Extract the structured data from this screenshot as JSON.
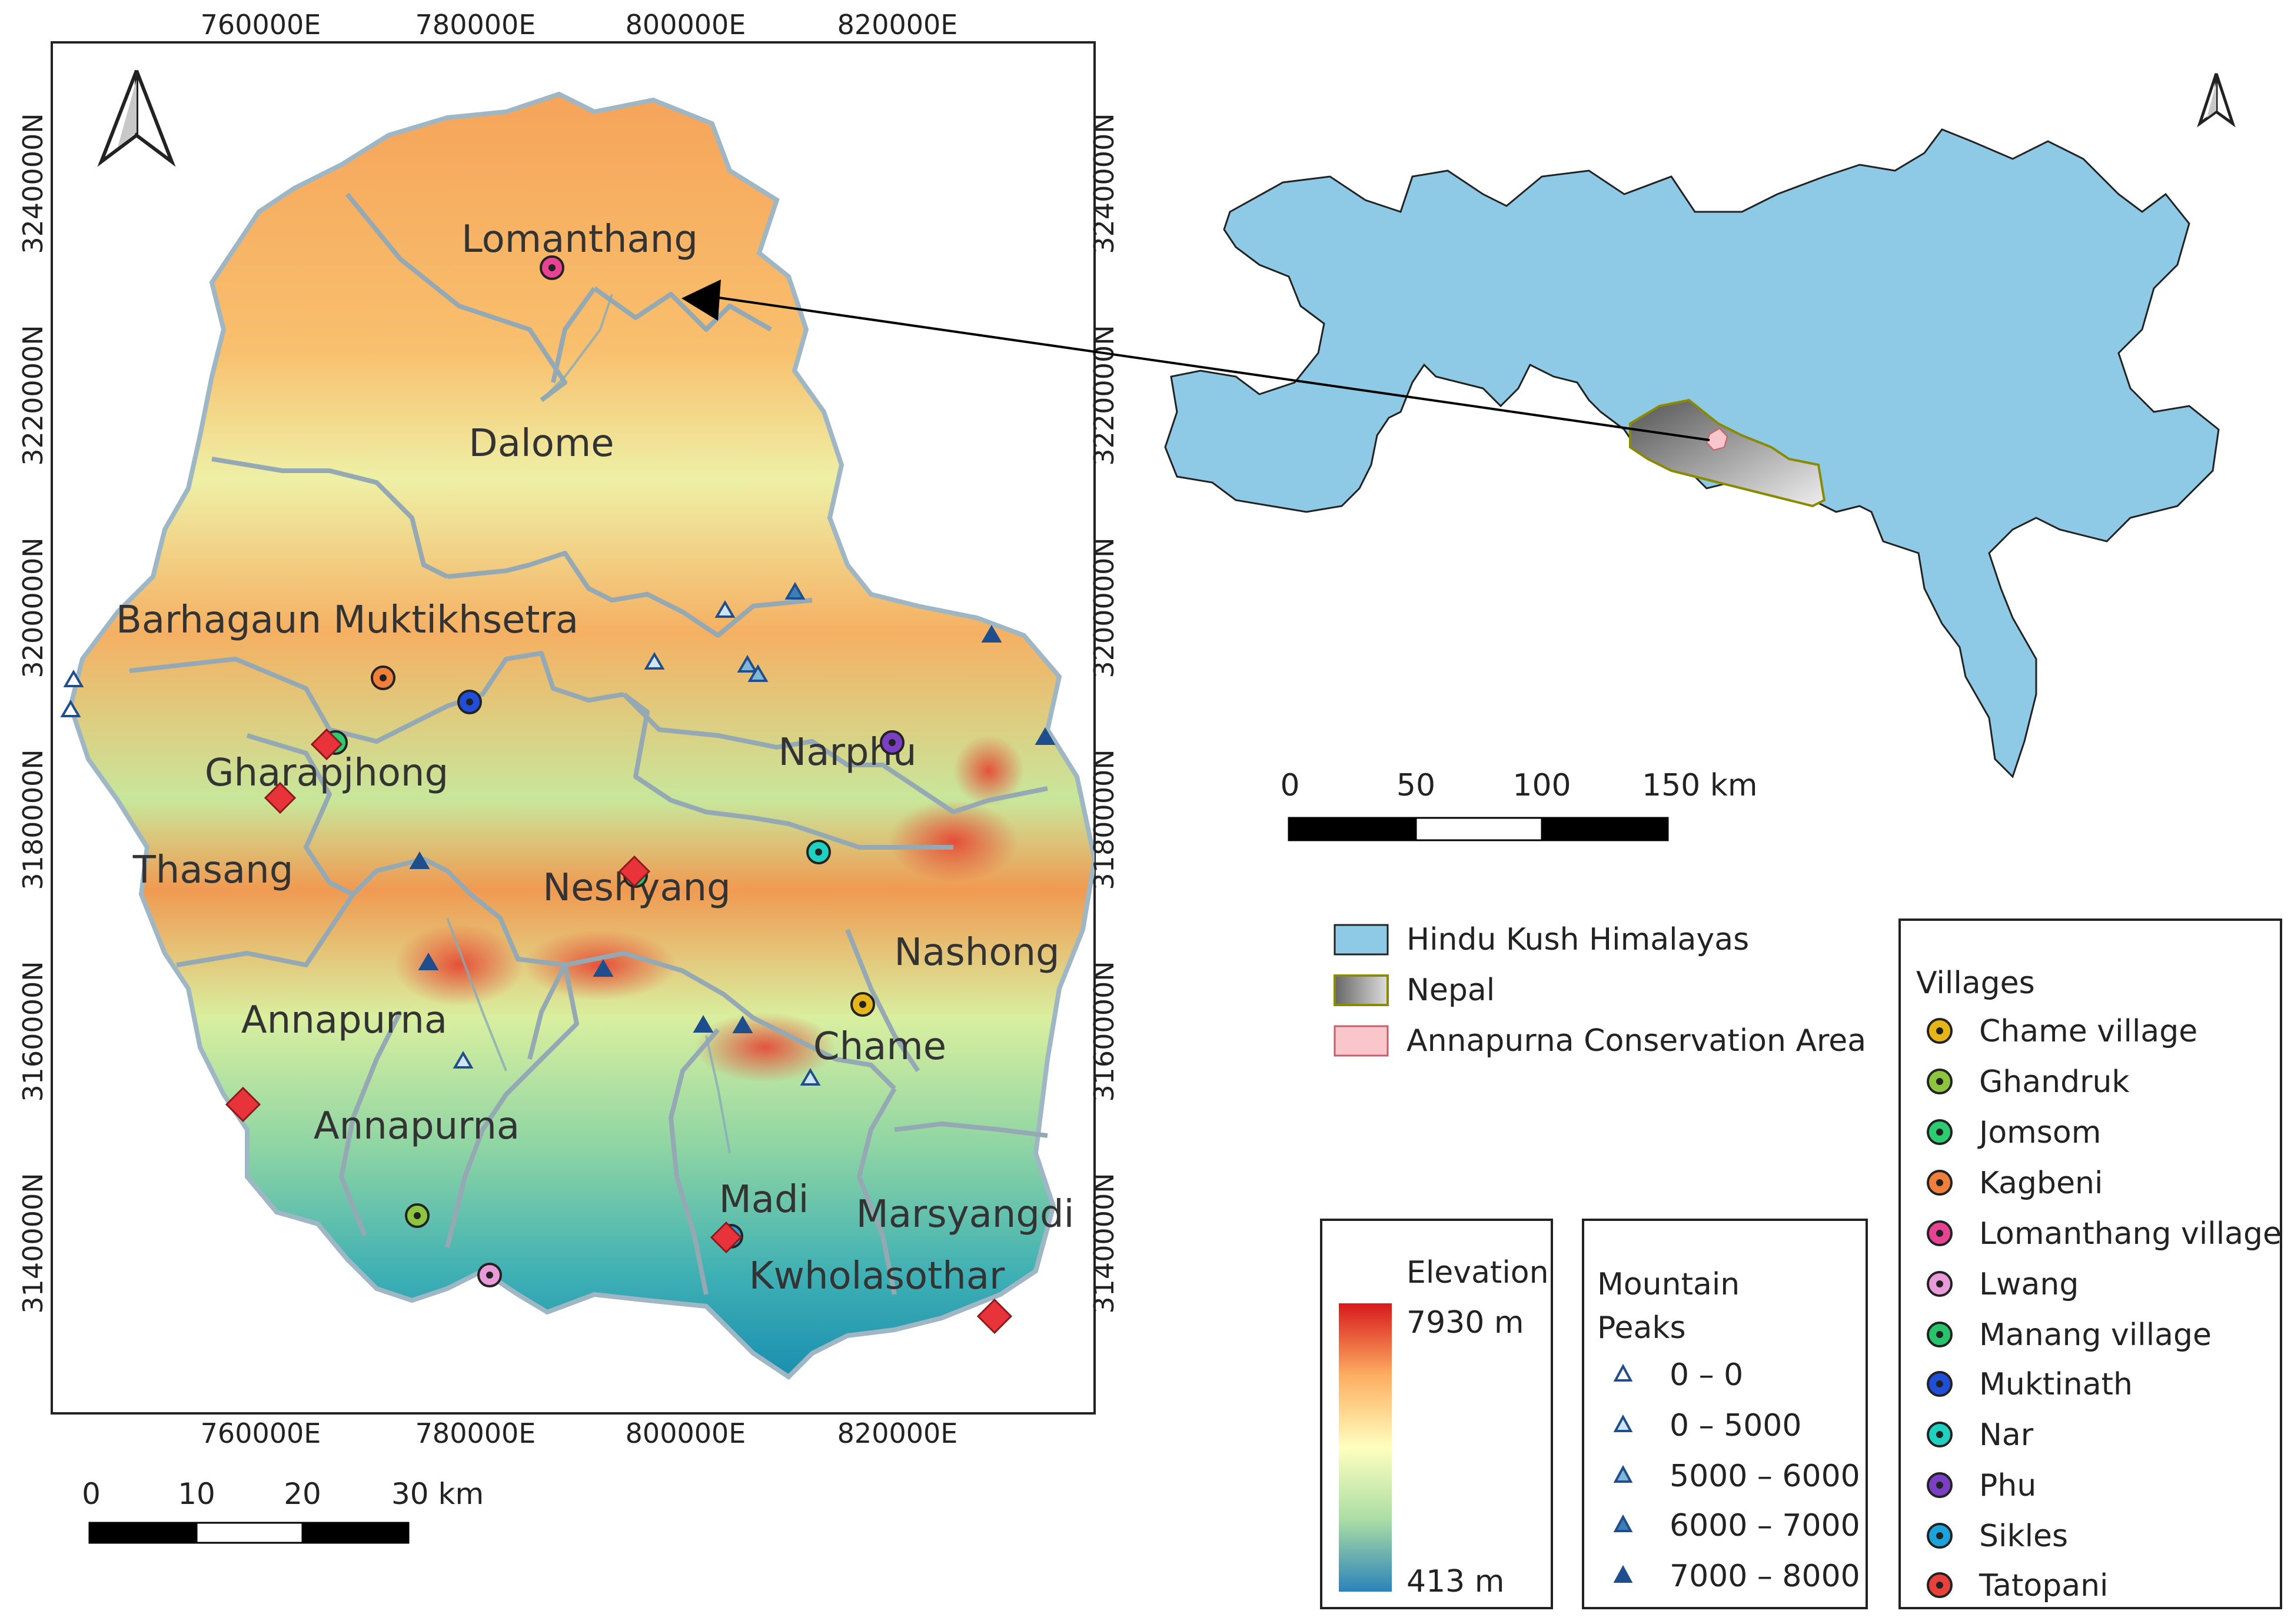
{
  "main_map": {
    "coords_top": [
      "760000E",
      "780000E",
      "800000E",
      "820000E"
    ],
    "coords_bottom": [
      "760000E",
      "780000E",
      "800000E",
      "820000E"
    ],
    "coords_left": [
      "3240000N",
      "3220000N",
      "3200000N",
      "3180000N",
      "3160000N",
      "3140000N"
    ],
    "coords_right": [
      "3240000N",
      "3220000N",
      "3200000N",
      "3180000N",
      "3160000N",
      "3140000N"
    ],
    "regions": [
      "Lomanthang",
      "Dalome",
      "Barhagaun Muktikhsetra",
      "Gharapjhong",
      "Narphu",
      "Thasang",
      "Neshyang",
      "Nashong",
      "Annapurna",
      "Chame",
      "Annapurna",
      "Madi",
      "Marsyangdi",
      "Kwholasothar"
    ],
    "scalebar_labels": [
      "0",
      "10",
      "20",
      "30 km"
    ]
  },
  "inset_map": {
    "scalebar_labels": [
      "0",
      "50",
      "100",
      "150 km"
    ]
  },
  "legend_areas": {
    "items": [
      {
        "label": "Hindu Kush Himalayas",
        "color": "#8ecae6"
      },
      {
        "label": "Nepal",
        "color": "#808080"
      },
      {
        "label": "Annapurna Conservation Area",
        "color": "#f8c6cb"
      }
    ]
  },
  "legend_villages": {
    "title": "Villages",
    "items": [
      {
        "label": "Chame village",
        "color": "#e6b619"
      },
      {
        "label": "Ghandruk",
        "color": "#8cc63f"
      },
      {
        "label": "Jomsom",
        "color": "#2ecc71"
      },
      {
        "label": "Kagbeni",
        "color": "#f07f3c"
      },
      {
        "label": "Lomanthang village",
        "color": "#e84393"
      },
      {
        "label": "Lwang",
        "color": "#e89bd6"
      },
      {
        "label": "Manang village",
        "color": "#27c46b"
      },
      {
        "label": "Muktinath",
        "color": "#1f4fd8"
      },
      {
        "label": "Nar",
        "color": "#1fd1c1"
      },
      {
        "label": "Phu",
        "color": "#7b3fc4"
      },
      {
        "label": "Sikles",
        "color": "#1ca3d9"
      },
      {
        "label": "Tatopani",
        "color": "#e8413b"
      }
    ]
  },
  "legend_elevation": {
    "title": "Elevation",
    "max_label": "7930 m",
    "min_label": "413 m"
  },
  "legend_peaks": {
    "title_line1": "Mountain",
    "title_line2": "Peaks",
    "items": [
      {
        "label": "0 – 0",
        "color": "#ffffff"
      },
      {
        "label": "0 – 5000",
        "color": "#cfe5f2"
      },
      {
        "label": "5000 – 6000",
        "color": "#7fb6d9"
      },
      {
        "label": "6000 – 7000",
        "color": "#3b7fb8"
      },
      {
        "label": "7000 – 8000",
        "color": "#1f4e8c"
      }
    ]
  }
}
